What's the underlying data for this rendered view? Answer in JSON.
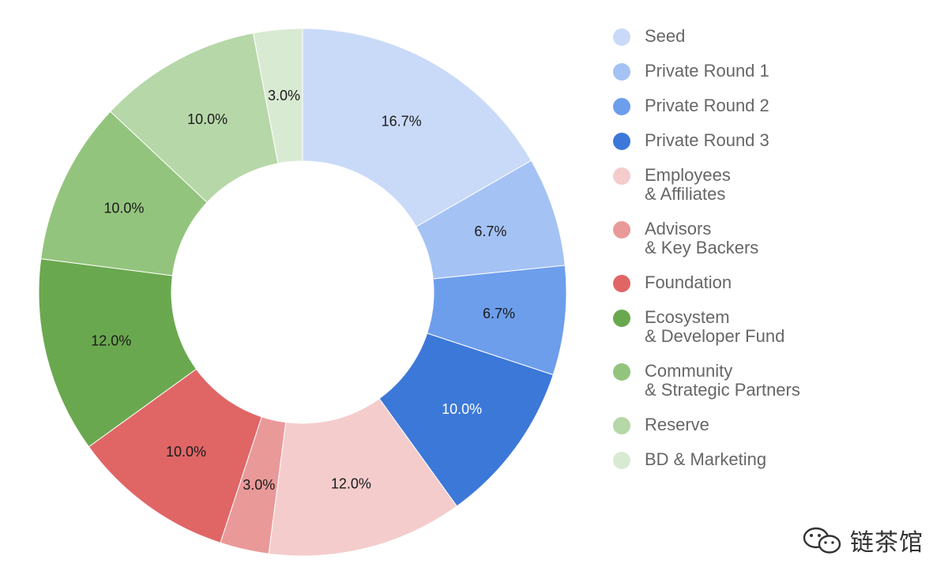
{
  "chart_data": {
    "type": "pie",
    "variant": "donut",
    "title": "",
    "slices": [
      {
        "name": "Seed",
        "value": 16.7,
        "label": "16.7%",
        "color": "#c9daf8",
        "label_color": "#1a1a1a"
      },
      {
        "name": "Private Round 1",
        "value": 6.7,
        "label": "6.7%",
        "color": "#a4c2f4",
        "label_color": "#1a1a1a"
      },
      {
        "name": "Private Round 2",
        "value": 6.7,
        "label": "6.7%",
        "color": "#6d9eeb",
        "label_color": "#1a1a1a"
      },
      {
        "name": "Private Round 3",
        "value": 10.0,
        "label": "10.0%",
        "color": "#3c78d8",
        "label_color": "#ffffff"
      },
      {
        "name": "Employees\n& Affiliates",
        "value": 12.0,
        "label": "12.0%",
        "color": "#f4cccc",
        "label_color": "#1a1a1a"
      },
      {
        "name": "Advisors\n& Key Backers",
        "value": 3.0,
        "label": "3.0%",
        "color": "#ea9999",
        "label_color": "#1a1a1a"
      },
      {
        "name": "Foundation",
        "value": 10.0,
        "label": "10.0%",
        "color": "#e06666",
        "label_color": "#1a1a1a"
      },
      {
        "name": "Ecosystem\n& Developer Fund",
        "value": 12.0,
        "label": "12.0%",
        "color": "#6aa84f",
        "label_color": "#1a1a1a"
      },
      {
        "name": "Community\n& Strategic Partners",
        "value": 10.0,
        "label": "10.0%",
        "color": "#93c47d",
        "label_color": "#1a1a1a"
      },
      {
        "name": "Reserve",
        "value": 10.0,
        "label": "10.0%",
        "color": "#b6d7a8",
        "label_color": "#1a1a1a"
      },
      {
        "name": "BD & Marketing",
        "value": 3.0,
        "label": "3.0%",
        "color": "#d9ead3",
        "label_color": "#1a1a1a"
      }
    ],
    "legend_position": "right"
  },
  "watermark": {
    "text": "链茶馆",
    "icon": "wechat-chat-bubbles-icon"
  }
}
